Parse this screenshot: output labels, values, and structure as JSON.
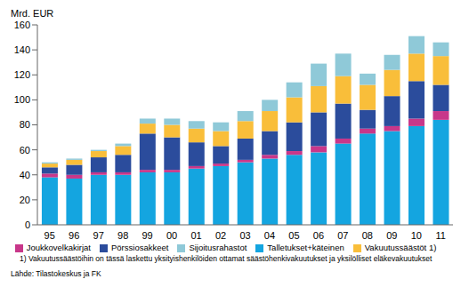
{
  "chart_data": {
    "type": "bar",
    "stacked": true,
    "y_label": "Mrd. EUR",
    "categories": [
      "95",
      "96",
      "97",
      "98",
      "99",
      "00",
      "01",
      "02",
      "03",
      "04",
      "05",
      "06",
      "07",
      "08",
      "09",
      "10",
      "11"
    ],
    "ylim": [
      0,
      160
    ],
    "yticks": [
      0,
      20,
      40,
      60,
      80,
      100,
      120,
      140,
      160
    ],
    "grid": false,
    "legend": "bottom",
    "series": [
      {
        "name": "Talletukset+käteinen",
        "color": "#14a5e0",
        "values": [
          38,
          37,
          40,
          40,
          42,
          42,
          45,
          47,
          50,
          53,
          56,
          58,
          65,
          73,
          75,
          79,
          84
        ]
      },
      {
        "name": "Joukkovelkakirjat",
        "color": "#c8378a",
        "values": [
          3,
          3,
          2,
          2,
          2,
          2,
          2,
          2,
          2,
          3,
          3,
          5,
          4,
          4,
          4,
          6,
          7
        ]
      },
      {
        "name": "Pörssiosakkeet",
        "color": "#2b4c9c",
        "values": [
          5,
          8,
          12,
          14,
          29,
          26,
          19,
          14,
          17,
          19,
          23,
          27,
          28,
          15,
          24,
          30,
          21
        ]
      },
      {
        "name": "Vakuutussäästöt 1)",
        "color": "#f9be3a",
        "values": [
          3,
          4,
          5,
          7,
          8,
          10,
          11,
          12,
          14,
          16,
          20,
          21,
          22,
          20,
          21,
          22,
          23
        ]
      },
      {
        "name": "Sijoitusrahastot",
        "color": "#8fc9d8",
        "values": [
          1,
          1,
          1,
          2,
          4,
          5,
          6,
          7,
          8,
          9,
          12,
          18,
          18,
          9,
          12,
          14,
          11
        ]
      }
    ],
    "annotations": [
      "1)  Vakuutussäästöihin on tässä laskettu yksityishenkilöiden ottamat säästöhenkivakuutukset ja yksilölliset eläkevakuutukset",
      "Lähde: Tilastokeskus ja FK"
    ]
  }
}
